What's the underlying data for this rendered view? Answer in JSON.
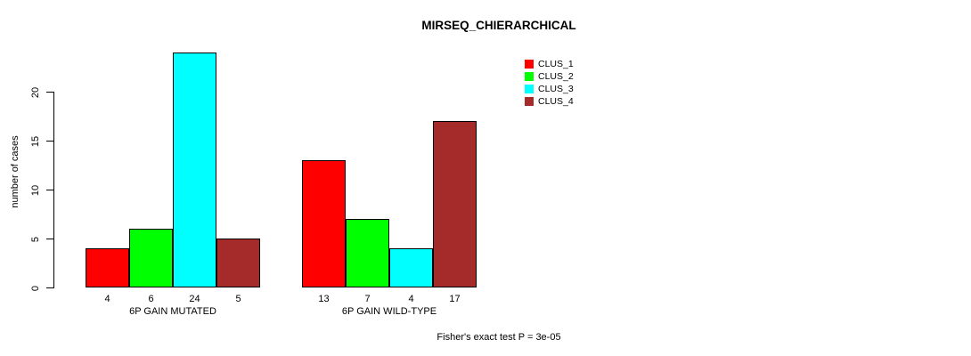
{
  "chart_data": {
    "type": "bar",
    "title": "MIRSEQ_CHIERARCHICAL",
    "xlabel": "",
    "ylabel": "number of cases",
    "ylim": [
      0,
      24
    ],
    "yticks": [
      0,
      5,
      10,
      15,
      20
    ],
    "grid": false,
    "legend_position": "top-right",
    "series": [
      {
        "name": "CLUS_1",
        "color": "#ff0000"
      },
      {
        "name": "CLUS_2",
        "color": "#00ff00"
      },
      {
        "name": "CLUS_3",
        "color": "#00ffff"
      },
      {
        "name": "CLUS_4",
        "color": "#a52a2a"
      }
    ],
    "groups": [
      {
        "label": "6P GAIN MUTATED",
        "values": [
          4,
          6,
          24,
          5
        ]
      },
      {
        "label": "6P GAIN WILD-TYPE",
        "values": [
          13,
          7,
          4,
          17
        ]
      }
    ],
    "bar_value_labels": [
      [
        4,
        6,
        24,
        5
      ],
      [
        13,
        7,
        4,
        17
      ]
    ],
    "footnote": "Fisher's exact test P = 3e-05",
    "colors": {
      "background": "#ffffff",
      "bar_border": "#000000",
      "text": "#000000"
    }
  }
}
